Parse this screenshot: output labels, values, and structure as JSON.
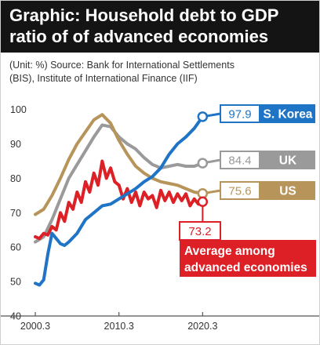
{
  "title_line1": "Graphic: Household debt to GDP",
  "title_line2": "ratio of of advanced economies",
  "source_line1": "(Unit: %) Source: Bank for International Settlements",
  "source_line2": "(BIS), Institute of International Finance (IIF)",
  "chart_data": {
    "type": "line",
    "title": "Graphic: Household debt to GDP ratio of of advanced economies",
    "unit": "%",
    "x_ticks": [
      "2000.3",
      "2010.3",
      "2020.3"
    ],
    "x_tick_values": [
      2000.25,
      2010.25,
      2020.25
    ],
    "xlim": [
      1999.5,
      2023.5
    ],
    "y_ticks": [
      40,
      50,
      60,
      70,
      80,
      90,
      100
    ],
    "ylim": [
      40,
      103
    ],
    "grid": false,
    "series": [
      {
        "name": "S. Korea",
        "color": "#1f74c6",
        "end_label": "97.9",
        "x": [
          2000.25,
          2000.75,
          2001.25,
          2001.75,
          2002.25,
          2002.75,
          2003.25,
          2003.75,
          2004.25,
          2005.25,
          2006.25,
          2007.25,
          2008.25,
          2009.25,
          2010.25,
          2011.25,
          2012.25,
          2013.25,
          2014.25,
          2015.25,
          2016.25,
          2017.25,
          2018.25,
          2019.25,
          2020.25
        ],
        "values": [
          49.5,
          49.0,
          50.5,
          58.0,
          64.0,
          62.5,
          61.0,
          60.5,
          61.5,
          64.0,
          68.0,
          70.0,
          72.0,
          72.5,
          74.0,
          75.5,
          77.0,
          79.0,
          80.5,
          83.0,
          87.0,
          90.0,
          92.0,
          94.5,
          97.9
        ]
      },
      {
        "name": "UK",
        "color": "#9a9a9a",
        "end_label": "84.4",
        "x": [
          2000.25,
          2001.25,
          2002.25,
          2003.25,
          2004.25,
          2005.25,
          2006.25,
          2007.25,
          2008.25,
          2009.25,
          2010.25,
          2011.25,
          2012.25,
          2013.25,
          2014.25,
          2015.25,
          2016.25,
          2017.25,
          2018.25,
          2019.25,
          2020.25
        ],
        "values": [
          61.5,
          63.0,
          68.0,
          74.0,
          80.0,
          84.0,
          88.0,
          92.0,
          95.5,
          95.0,
          92.0,
          90.0,
          88.5,
          86.0,
          84.0,
          83.0,
          83.5,
          84.0,
          83.5,
          83.5,
          84.4
        ]
      },
      {
        "name": "US",
        "color": "#b7955a",
        "end_label": "75.6",
        "x": [
          2000.25,
          2001.25,
          2002.25,
          2003.25,
          2004.25,
          2005.25,
          2006.25,
          2007.25,
          2008.25,
          2009.25,
          2010.25,
          2011.25,
          2012.25,
          2013.25,
          2014.25,
          2015.25,
          2016.25,
          2017.25,
          2018.25,
          2019.25,
          2020.25
        ],
        "values": [
          69.5,
          71.0,
          75.0,
          80.0,
          85.5,
          90.0,
          93.5,
          97.0,
          98.5,
          96.0,
          91.0,
          87.0,
          83.5,
          81.5,
          80.0,
          79.0,
          78.5,
          78.0,
          77.0,
          76.0,
          75.6
        ]
      },
      {
        "name": "Average among advanced economies",
        "color": "#dd1f26",
        "end_label": "73.2",
        "x": [
          2000.25,
          2000.75,
          2001.25,
          2001.75,
          2002.25,
          2002.75,
          2003.25,
          2003.75,
          2004.25,
          2004.75,
          2005.25,
          2005.75,
          2006.25,
          2006.75,
          2007.25,
          2007.75,
          2008.25,
          2008.75,
          2009.25,
          2009.75,
          2010.25,
          2010.75,
          2011.25,
          2011.75,
          2012.25,
          2012.75,
          2013.25,
          2013.75,
          2014.25,
          2014.75,
          2015.25,
          2015.75,
          2016.25,
          2016.75,
          2017.25,
          2017.75,
          2018.25,
          2018.75,
          2019.25,
          2019.75,
          2020.25
        ],
        "values": [
          63.0,
          62.5,
          64.0,
          63.5,
          66.0,
          65.0,
          70.0,
          67.5,
          73.0,
          71.0,
          76.0,
          73.0,
          79.0,
          76.0,
          81.5,
          78.0,
          85.0,
          80.0,
          83.0,
          79.0,
          78.0,
          74.0,
          77.0,
          73.0,
          76.0,
          72.0,
          76.0,
          74.0,
          75.0,
          71.5,
          76.5,
          73.5,
          76.0,
          73.0,
          75.5,
          73.5,
          75.5,
          72.0,
          74.0,
          72.5,
          73.2
        ]
      }
    ]
  }
}
